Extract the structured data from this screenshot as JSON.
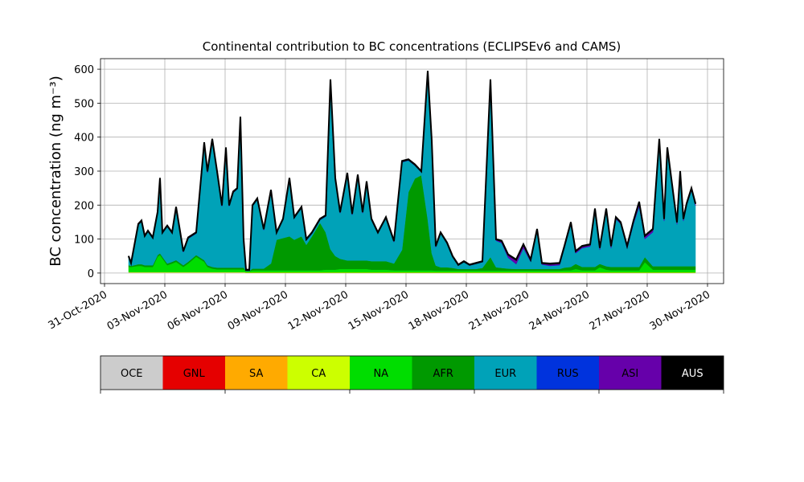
{
  "chart_data": {
    "type": "stacked-area",
    "title": "Continental contribution to BC concentrations (ECLIPSEv6 and CAMS)",
    "y_label": "BC concentration (ng m⁻³)",
    "x": [
      1.2,
      1.32,
      1.68,
      1.84,
      2.0,
      2.16,
      2.4,
      2.64,
      2.76,
      2.88,
      3.12,
      3.36,
      3.56,
      3.92,
      4.16,
      4.56,
      4.96,
      5.12,
      5.36,
      5.6,
      5.84,
      6.04,
      6.2,
      6.4,
      6.6,
      6.76,
      6.92,
      7.04,
      7.2,
      7.36,
      7.6,
      7.92,
      8.28,
      8.56,
      8.88,
      9.2,
      9.44,
      9.8,
      10.04,
      10.32,
      10.72,
      11.0,
      11.24,
      11.48,
      11.72,
      12.08,
      12.32,
      12.6,
      12.84,
      13.04,
      13.28,
      13.6,
      14.0,
      14.4,
      14.8,
      15.12,
      15.44,
      15.76,
      16.08,
      16.28,
      16.48,
      16.72,
      17.04,
      17.32,
      17.6,
      17.88,
      18.16,
      18.48,
      18.8,
      19.2,
      19.48,
      19.76,
      20.08,
      20.48,
      20.84,
      21.2,
      21.52,
      21.76,
      22.16,
      22.64,
      22.88,
      23.2,
      23.44,
      23.76,
      24.16,
      24.4,
      24.64,
      24.96,
      25.2,
      25.44,
      25.68,
      26.0,
      26.32,
      26.6,
      26.88,
      27.28,
      27.6,
      27.84,
      28.0,
      28.24,
      28.48,
      28.64,
      28.8,
      28.96,
      29.2,
      29.4
    ],
    "xlim": [
      -0.2,
      30.8
    ],
    "xticks": [
      {
        "value": 0,
        "label": "31-Oct-2020"
      },
      {
        "value": 3,
        "label": "03-Nov-2020"
      },
      {
        "value": 6,
        "label": "06-Nov-2020"
      },
      {
        "value": 9,
        "label": "09-Nov-2020"
      },
      {
        "value": 12,
        "label": "12-Nov-2020"
      },
      {
        "value": 15,
        "label": "15-Nov-2020"
      },
      {
        "value": 18,
        "label": "18-Nov-2020"
      },
      {
        "value": 21,
        "label": "21-Nov-2020"
      },
      {
        "value": 24,
        "label": "24-Nov-2020"
      },
      {
        "value": 27,
        "label": "27-Nov-2020"
      },
      {
        "value": 30,
        "label": "30-Nov-2020"
      }
    ],
    "ylim": [
      -31,
      631
    ],
    "yticks": [
      0,
      100,
      200,
      300,
      400,
      500,
      600
    ],
    "grid": true,
    "series": [
      {
        "name": "OCE",
        "color": "#cccccc",
        "values": [
          2,
          2,
          2,
          2,
          2,
          2,
          2,
          2,
          2,
          2,
          2,
          2,
          2,
          2,
          2,
          2,
          2,
          2,
          2,
          2,
          2,
          2,
          2,
          2,
          2,
          2,
          2,
          1,
          1,
          1,
          1,
          1,
          1,
          1,
          1,
          1,
          1,
          1,
          1,
          1,
          1,
          1,
          1,
          1,
          1,
          1,
          1,
          1,
          1,
          1,
          1,
          1,
          1,
          1,
          1,
          1,
          1,
          1,
          1,
          1,
          1,
          1,
          1,
          1,
          1,
          1,
          1,
          1,
          1,
          1,
          1,
          1,
          1,
          1,
          1,
          1,
          1,
          1,
          1,
          1,
          1,
          1,
          1,
          1,
          1,
          1,
          1,
          1,
          1,
          1,
          1,
          1,
          1,
          1,
          1,
          1,
          1,
          1,
          1,
          1,
          1,
          1,
          1,
          1,
          1,
          1
        ]
      },
      {
        "name": "GNL",
        "color": "#e50000",
        "values": [
          0,
          0,
          0,
          0,
          0,
          0,
          0,
          0,
          0,
          0,
          0,
          0,
          0,
          0,
          0,
          0,
          0,
          0,
          0,
          0,
          0,
          0,
          0,
          0,
          0,
          0,
          0,
          0,
          0,
          0,
          0,
          0,
          0,
          0,
          0,
          0,
          0,
          0,
          0,
          0,
          0,
          0,
          0,
          0,
          0,
          0,
          0,
          0,
          0,
          0,
          0,
          0,
          0,
          0,
          0,
          0,
          0,
          0,
          0,
          0,
          0,
          0,
          0,
          0,
          0,
          0,
          0,
          0,
          0,
          0,
          0,
          0,
          0,
          0,
          0,
          0,
          0,
          0,
          0,
          0,
          0,
          0,
          0,
          0,
          0,
          0,
          0,
          0,
          0,
          0,
          0,
          0,
          0,
          0,
          0,
          0,
          0,
          0,
          0,
          0,
          0,
          0,
          0,
          0,
          0,
          0
        ]
      },
      {
        "name": "SA",
        "color": "#ffaa00",
        "values": [
          0,
          0,
          0,
          0,
          0,
          0,
          0,
          0,
          0,
          0,
          0,
          0,
          0,
          0,
          0,
          0,
          0,
          0,
          0,
          0,
          0,
          0,
          0,
          0,
          0,
          0,
          0,
          0,
          0,
          0,
          0,
          0,
          0,
          0,
          0,
          0,
          0,
          0,
          0,
          0,
          0,
          0,
          0,
          0,
          0,
          0,
          0,
          0,
          0,
          0,
          0,
          0,
          0,
          0,
          0,
          0,
          0,
          0,
          0,
          0,
          0,
          0,
          0,
          0,
          0,
          0,
          0,
          0,
          0,
          0,
          0,
          0,
          0,
          0,
          0,
          0,
          0,
          0,
          0,
          0,
          0,
          0,
          0,
          0,
          0,
          0,
          0,
          0,
          0,
          0,
          0,
          0,
          0,
          0,
          0,
          0,
          0,
          0,
          0,
          0,
          0,
          0,
          0,
          0,
          0,
          0
        ]
      },
      {
        "name": "CA",
        "color": "#ccff00",
        "values": [
          1,
          1,
          1,
          1,
          1,
          1,
          1,
          1,
          1,
          1,
          1,
          1,
          1,
          1,
          1,
          1,
          1,
          1,
          1,
          1,
          1,
          1,
          1,
          1,
          1,
          1,
          1,
          1,
          1,
          1,
          1,
          1,
          1,
          1,
          1,
          1,
          1,
          1,
          1,
          1,
          1,
          1,
          1,
          1,
          1,
          1,
          1,
          1,
          1,
          1,
          1,
          1,
          1,
          1,
          1,
          1,
          1,
          1,
          1,
          1,
          1,
          1,
          1,
          1,
          1,
          1,
          1,
          1,
          1,
          1,
          1,
          1,
          1,
          1,
          1,
          1,
          1,
          1,
          1,
          1,
          1,
          1,
          1,
          1,
          1,
          1,
          1,
          1,
          1,
          1,
          1,
          1,
          1,
          1,
          1,
          1,
          1,
          1,
          1,
          1,
          1,
          1,
          1,
          1,
          1,
          1
        ]
      },
      {
        "name": "NA",
        "color": "#00dd00",
        "values": [
          15,
          15,
          18,
          18,
          15,
          15,
          15,
          45,
          50,
          40,
          20,
          25,
          30,
          15,
          25,
          45,
          30,
          15,
          10,
          8,
          8,
          8,
          8,
          8,
          8,
          8,
          8,
          3,
          3,
          6,
          6,
          6,
          6,
          6,
          6,
          6,
          6,
          6,
          6,
          6,
          6,
          8,
          8,
          8,
          10,
          10,
          10,
          10,
          10,
          10,
          8,
          8,
          8,
          6,
          6,
          6,
          6,
          6,
          6,
          6,
          5,
          5,
          5,
          5,
          5,
          5,
          5,
          5,
          5,
          5,
          5,
          5,
          5,
          5,
          5,
          5,
          5,
          5,
          5,
          5,
          6,
          6,
          10,
          6,
          6,
          6,
          15,
          8,
          6,
          6,
          6,
          6,
          6,
          6,
          30,
          8,
          8,
          8,
          8,
          8,
          8,
          8,
          8,
          8,
          8,
          8
        ]
      },
      {
        "name": "AFR",
        "color": "#009900",
        "values": [
          5,
          3,
          5,
          5,
          5,
          5,
          5,
          5,
          5,
          5,
          5,
          5,
          5,
          5,
          5,
          5,
          5,
          5,
          5,
          5,
          5,
          5,
          5,
          5,
          5,
          5,
          5,
          1,
          1,
          5,
          5,
          5,
          20,
          90,
          95,
          100,
          90,
          100,
          75,
          100,
          140,
          110,
          60,
          40,
          30,
          25,
          25,
          25,
          25,
          25,
          25,
          25,
          25,
          20,
          60,
          230,
          270,
          280,
          150,
          50,
          15,
          10,
          10,
          8,
          5,
          5,
          5,
          5,
          8,
          40,
          10,
          8,
          6,
          5,
          5,
          5,
          5,
          5,
          5,
          5,
          8,
          10,
          15,
          10,
          10,
          10,
          10,
          10,
          10,
          10,
          10,
          10,
          10,
          10,
          15,
          10,
          10,
          10,
          10,
          10,
          10,
          10,
          10,
          10,
          10,
          10
        ]
      },
      {
        "name": "EUR",
        "color": "#00a2b8",
        "values": [
          24,
          6,
          115,
          125,
          83,
          98,
          78,
          123,
          218,
          68,
          108,
          83,
          153,
          38,
          68,
          63,
          342,
          272,
          372,
          279,
          180,
          350,
          180,
          220,
          230,
          440,
          80,
          1,
          1,
          183,
          203,
          113,
          213,
          18,
          53,
          168,
          63,
          83,
          13,
          8,
          8,
          46,
          496,
          226,
          134,
          254,
          134,
          249,
          139,
          229,
          121,
          81,
          126,
          63,
          258,
          93,
          38,
          8,
          433,
          328,
          54,
          99,
          69,
          31,
          10,
          20,
          10,
          15,
          17,
          519,
          78,
          73,
          32,
          14,
          61,
          21,
          113,
          13,
          9,
          11,
          57,
          125,
          31,
          55,
          60,
          165,
          41,
          163,
          55,
          141,
          126,
          54,
          127,
          178,
          53,
          100,
          368,
          133,
          343,
          233,
          123,
          273,
          133,
          178,
          223,
          178
        ]
      },
      {
        "name": "RUS",
        "color": "#0033dd",
        "values": [
          1,
          1,
          1,
          1,
          1,
          1,
          1,
          1,
          1,
          1,
          1,
          1,
          1,
          1,
          1,
          1,
          1,
          1,
          1,
          1,
          1,
          1,
          1,
          1,
          1,
          1,
          1,
          1,
          1,
          1,
          1,
          1,
          1,
          1,
          1,
          1,
          1,
          1,
          1,
          1,
          1,
          1,
          1,
          1,
          1,
          1,
          1,
          1,
          1,
          1,
          1,
          1,
          1,
          1,
          1,
          1,
          1,
          1,
          1,
          1,
          1,
          1,
          1,
          1,
          1,
          1,
          1,
          1,
          1,
          1,
          1,
          1,
          1,
          1,
          1,
          1,
          1,
          1,
          1,
          1,
          1,
          1,
          1,
          1,
          1,
          1,
          1,
          1,
          1,
          1,
          1,
          1,
          1,
          1,
          1,
          1,
          1,
          1,
          1,
          1,
          1,
          1,
          1,
          1,
          1,
          1
        ]
      },
      {
        "name": "ASI",
        "color": "#6600aa",
        "values": [
          1,
          1,
          2,
          2,
          2,
          2,
          2,
          2,
          2,
          2,
          2,
          2,
          2,
          2,
          2,
          2,
          3,
          3,
          3,
          3,
          2,
          2,
          2,
          2,
          2,
          2,
          2,
          1,
          1,
          2,
          2,
          2,
          2,
          2,
          2,
          2,
          2,
          2,
          2,
          2,
          2,
          2,
          2,
          2,
          2,
          2,
          2,
          2,
          2,
          2,
          2,
          2,
          2,
          2,
          2,
          2,
          2,
          2,
          2,
          2,
          2,
          2,
          2,
          2,
          1,
          1,
          1,
          1,
          1,
          2,
          3,
          5,
          8,
          12,
          10,
          5,
          3,
          3,
          5,
          5,
          5,
          5,
          5,
          5,
          5,
          5,
          5,
          5,
          5,
          4,
          4,
          6,
          8,
          12,
          8,
          8,
          5,
          5,
          5,
          5,
          5,
          5,
          5,
          5,
          5,
          5
        ]
      },
      {
        "name": "AUS",
        "color": "#000000",
        "values": [
          1,
          1,
          1,
          1,
          1,
          1,
          1,
          1,
          1,
          1,
          1,
          1,
          1,
          1,
          1,
          1,
          1,
          1,
          1,
          1,
          1,
          1,
          1,
          1,
          1,
          1,
          1,
          1,
          1,
          1,
          1,
          1,
          1,
          1,
          1,
          1,
          1,
          1,
          1,
          1,
          1,
          1,
          1,
          1,
          1,
          1,
          1,
          1,
          1,
          1,
          1,
          1,
          1,
          1,
          1,
          1,
          1,
          1,
          1,
          1,
          1,
          1,
          1,
          1,
          1,
          1,
          1,
          1,
          1,
          1,
          1,
          1,
          1,
          1,
          1,
          1,
          1,
          1,
          1,
          1,
          1,
          1,
          1,
          1,
          1,
          1,
          1,
          1,
          1,
          1,
          1,
          1,
          1,
          1,
          1,
          1,
          1,
          1,
          1,
          1,
          1,
          1,
          1,
          1,
          1,
          1
        ]
      }
    ]
  }
}
